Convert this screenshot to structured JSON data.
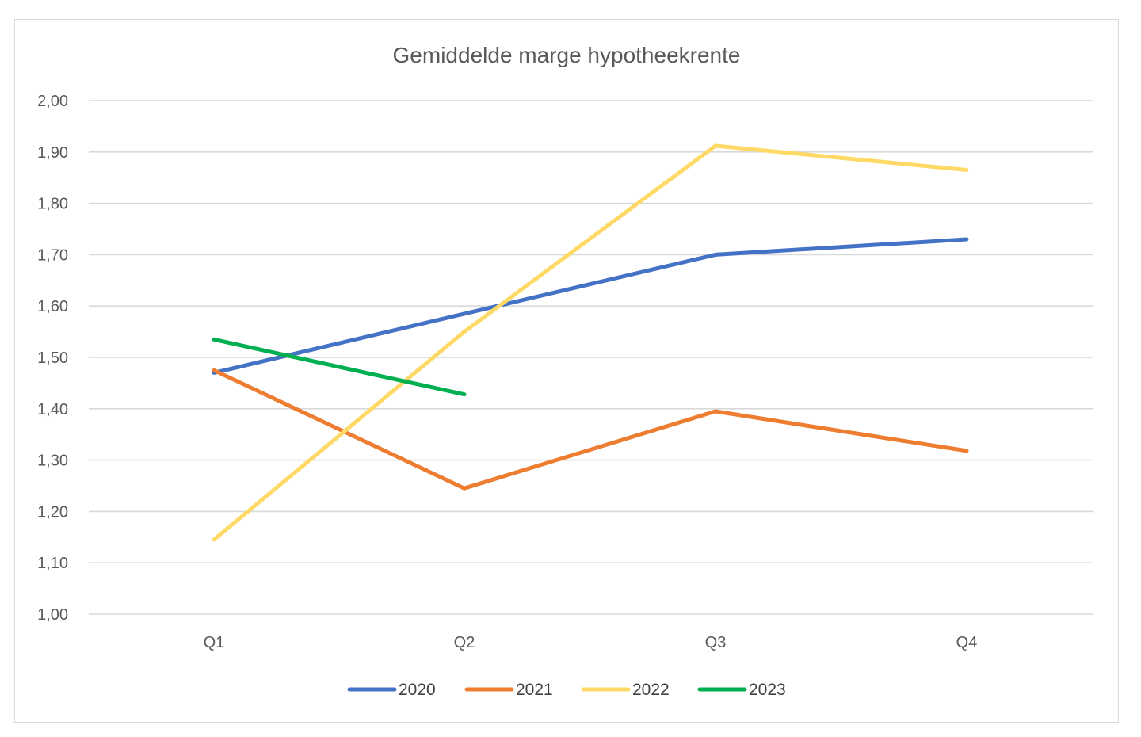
{
  "chart_data": {
    "type": "line",
    "title": "Gemiddelde marge hypotheekrente",
    "xlabel": "",
    "ylabel": "",
    "categories": [
      "Q1",
      "Q2",
      "Q3",
      "Q4"
    ],
    "ylim": [
      1.0,
      2.0
    ],
    "y_ticks": [
      "1,00",
      "1,10",
      "1,20",
      "1,30",
      "1,40",
      "1,50",
      "1,60",
      "1,70",
      "1,80",
      "1,90",
      "2,00"
    ],
    "y_tick_values": [
      1.0,
      1.1,
      1.2,
      1.3,
      1.4,
      1.5,
      1.6,
      1.7,
      1.8,
      1.9,
      2.0
    ],
    "grid": true,
    "legend_position": "bottom",
    "series": [
      {
        "name": "2020",
        "color": "#4472C4",
        "values": [
          1.47,
          1.585,
          1.7,
          1.73
        ]
      },
      {
        "name": "2021",
        "color": "#ED7D31",
        "values": [
          1.475,
          1.245,
          1.395,
          1.318
        ]
      },
      {
        "name": "2022",
        "color": "#FFD966",
        "values": [
          1.145,
          1.55,
          1.912,
          1.865
        ]
      },
      {
        "name": "2023",
        "color": "#00B050",
        "values": [
          1.535,
          1.428,
          null,
          null
        ]
      }
    ]
  }
}
